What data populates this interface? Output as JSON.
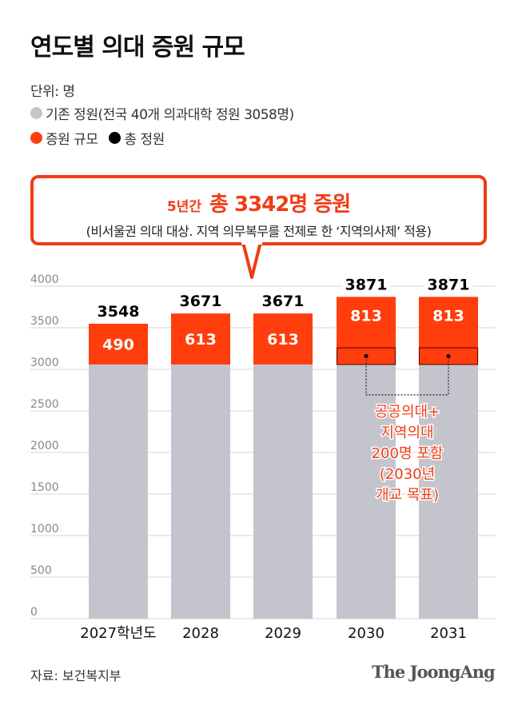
{
  "title": "연도별 의대 증원 규모",
  "unit": "단위: 명",
  "legend": {
    "base": "기존 정원(전국 40개 의과대학 정원 3058명)",
    "increase": "증원 규모",
    "total": "총 정원"
  },
  "callout": {
    "prefix": "5년간",
    "headline": "총 3342명 증원",
    "sub": "(비서울권 의대 대상. 지역 의무복무를 전제로 한 ‘지역의사제’ 적용)"
  },
  "annotation": [
    "공공의대+",
    "지역의대",
    "200명 포함",
    "(2030년",
    "개교 목표)"
  ],
  "source": "자료: 보건복지부",
  "logo": "The JoongAng",
  "colors": {
    "base": "#c4c5cc",
    "increase": "#ff3d0d",
    "total": "#000000",
    "accent": "#f03c15"
  },
  "chart_data": {
    "type": "bar",
    "stacked": true,
    "categories": [
      "2027학년도",
      "2028",
      "2029",
      "2030",
      "2031"
    ],
    "series": [
      {
        "name": "기존 정원",
        "values": [
          3058,
          3058,
          3058,
          3058,
          3058
        ]
      },
      {
        "name": "증원 규모",
        "values": [
          490,
          613,
          613,
          813,
          813
        ]
      }
    ],
    "totals": [
      3548,
      3671,
      3671,
      3871,
      3871
    ],
    "highlight_sub_segment": {
      "categories": [
        "2030",
        "2031"
      ],
      "value": 200
    },
    "ylim": [
      0,
      4000
    ],
    "yticks": [
      0,
      500,
      1000,
      1500,
      2000,
      2500,
      3000,
      3500,
      4000
    ],
    "grid": true
  }
}
